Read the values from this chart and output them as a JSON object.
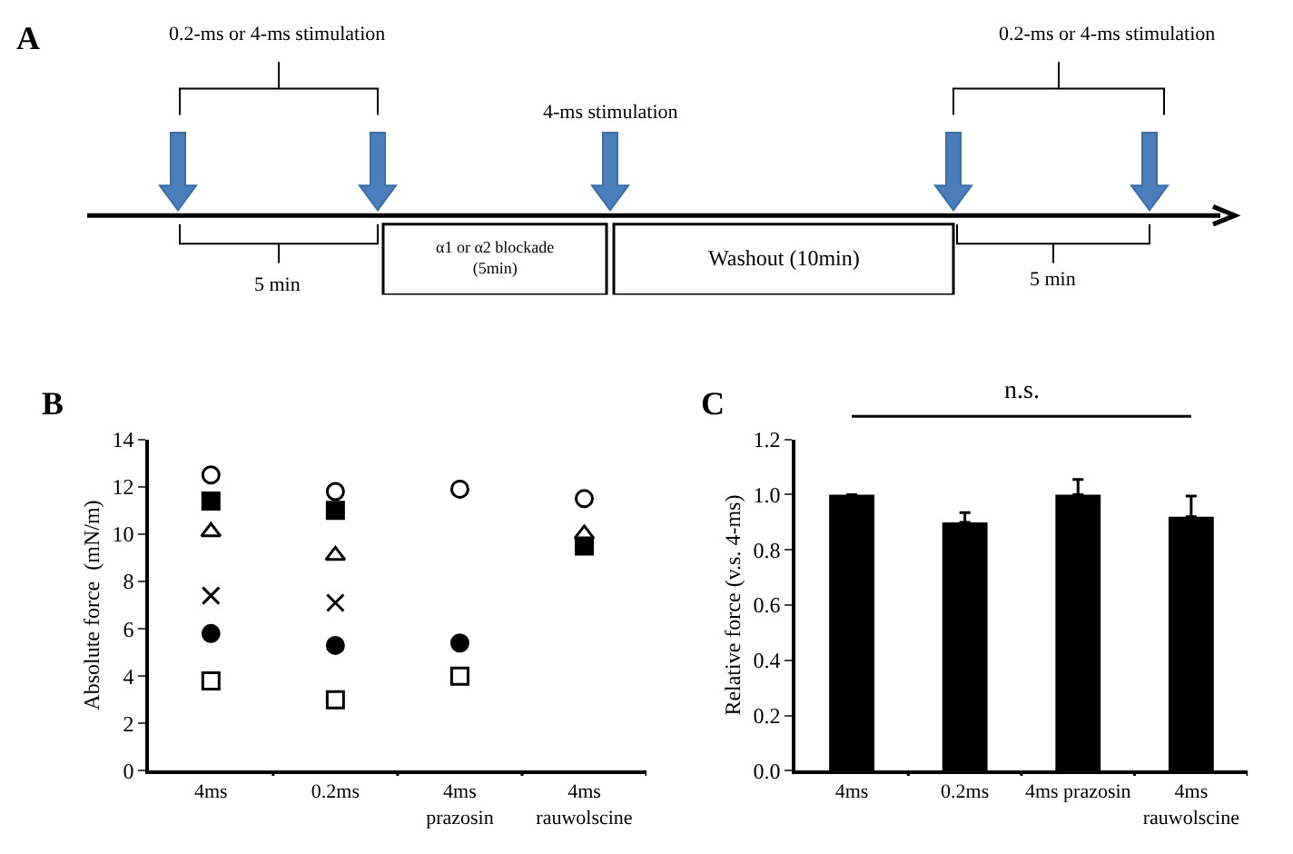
{
  "chart_data": [
    {
      "type": "other",
      "title": "A",
      "annotations": [
        "0.2-ms or 4-ms stimulation",
        "4-ms stimulation",
        "0.2-ms or 4-ms stimulation",
        "5 min",
        "α1 or α2 blockade\n(5min)",
        "Washout (10min)",
        "5 min"
      ]
    },
    {
      "type": "scatter",
      "title": "B",
      "ylabel": "Absolute force  (mN/m)",
      "categories": [
        "4ms",
        "0.2ms",
        "4ms\nprazosin",
        "4ms\nrauwolscine"
      ],
      "ylim": [
        0,
        14
      ],
      "yticks": [
        0,
        2,
        4,
        6,
        8,
        10,
        12,
        14
      ],
      "series": [
        {
          "color": "#000000",
          "marker": "circle-open",
          "values": [
            12.5,
            11.8,
            11.9,
            11.5
          ]
        },
        {
          "color": "#000000",
          "marker": "square",
          "values": [
            11.4,
            11.0,
            null,
            9.5
          ]
        },
        {
          "color": "#000000",
          "marker": "triangle-open",
          "values": [
            10.1,
            9.1,
            null,
            10.0
          ]
        },
        {
          "color": "#000000",
          "marker": "cross",
          "values": [
            7.4,
            7.1,
            null,
            null
          ]
        },
        {
          "color": "#000000",
          "marker": "circle",
          "values": [
            5.8,
            5.3,
            5.4,
            null
          ]
        },
        {
          "color": "#000000",
          "marker": "square-open",
          "values": [
            3.8,
            3.0,
            4.0,
            null
          ]
        }
      ]
    },
    {
      "type": "bar",
      "title": "C",
      "ylabel": "Relative force (v.s. 4-ms)",
      "categories": [
        "4ms",
        "0.2ms",
        "4ms prazosin",
        "4ms\nrauwolscine"
      ],
      "values": [
        1.0,
        0.9,
        1.0,
        0.92
      ],
      "errors": [
        null,
        0.035,
        0.055,
        0.075
      ],
      "color": "#000000",
      "ylim": [
        0,
        1.2
      ],
      "yticks": [
        {
          "value": 0,
          "label": "0.0"
        },
        {
          "value": 0.2,
          "label": "0.2"
        },
        {
          "value": 0.4,
          "label": "0.4"
        },
        {
          "value": 0.6,
          "label": "0.6"
        },
        {
          "value": 0.8,
          "label": "0.8"
        },
        {
          "value": 1.0,
          "label": "1.0"
        },
        {
          "value": 1.2,
          "label": "1.2"
        }
      ],
      "annotations": [
        "n.s."
      ]
    }
  ]
}
